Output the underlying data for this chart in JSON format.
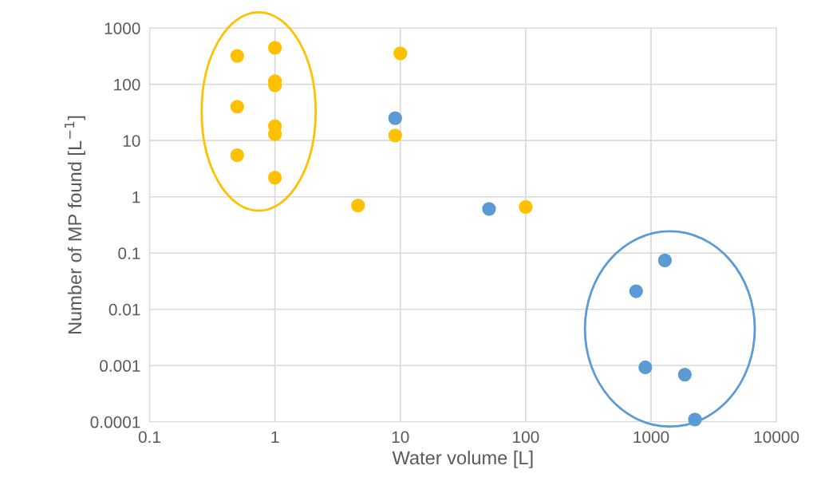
{
  "chart_data": {
    "type": "scatter",
    "xlabel": "Water volume [L]",
    "ylabel": "Number of MP found [L$^{−1}$]",
    "log": "xy",
    "grid": true,
    "marker": "circle",
    "xlim": [
      0.1,
      10000
    ],
    "xticks": [
      0.1,
      1,
      10,
      100,
      1000,
      10000
    ],
    "ylim": [
      0.0001,
      1000
    ],
    "yticks": [
      0.0001,
      0.001,
      0.01,
      0.1,
      1,
      10,
      100,
      1000
    ],
    "series": [
      {
        "color": "#ffc000",
        "x": [
          0.5,
          1,
          1,
          1,
          0.5,
          1,
          1,
          0.5,
          1,
          10,
          9.1,
          4.6,
          100
        ],
        "values": [
          320,
          445,
          113,
          96,
          40,
          18,
          13,
          5.5,
          2.2,
          355,
          12.3,
          0.7,
          0.66
        ]
      },
      {
        "color": "#5b9bd5",
        "x": [
          9.1,
          51,
          1290,
          760,
          900,
          1860,
          2240
        ],
        "values": [
          25,
          0.61,
          0.074,
          0.021,
          0.00093,
          0.00069,
          0.00011
        ]
      }
    ]
  }
}
